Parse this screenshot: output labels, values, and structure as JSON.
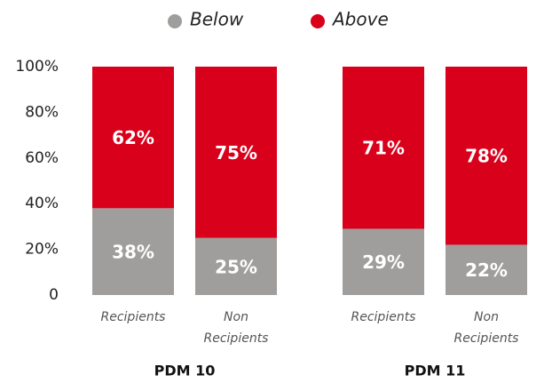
{
  "chart_data": {
    "type": "bar",
    "stacked": true,
    "categories": [
      "Recipients",
      "Non Recipients",
      "Recipients",
      "Non Recipients"
    ],
    "groups": [
      "PDM 10",
      "PDM 11"
    ],
    "series": [
      {
        "name": "Below",
        "color": "#a09e9c",
        "values": [
          38,
          25,
          29,
          22
        ],
        "value_labels": [
          "38%",
          "25%",
          "29%",
          "22%"
        ]
      },
      {
        "name": "Above",
        "color": "#d9001b",
        "values": [
          62,
          75,
          71,
          78
        ],
        "value_labels": [
          "62%",
          "75%",
          "71%",
          "78%"
        ]
      }
    ],
    "ylim": [
      0,
      100
    ],
    "yticks": [
      0,
      {
        "value": 20,
        "label": "20%"
      },
      {
        "value": 40,
        "label": "40%"
      },
      {
        "value": 60,
        "label": "60%"
      },
      {
        "value": 80,
        "label": "80%"
      },
      {
        "value": 100,
        "label": "100%"
      }
    ],
    "legend": "top",
    "grid": false
  }
}
